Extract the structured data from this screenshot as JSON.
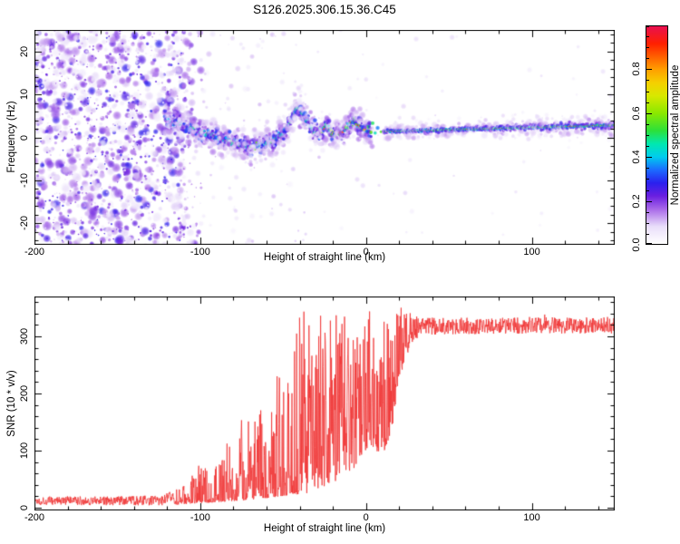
{
  "title": "S126.2025.306.15.36.C45",
  "chart_data": [
    {
      "type": "heatmap",
      "name": "doppler-spectrogram",
      "xlabel": "Height of straight line (km)",
      "ylabel": "Frequency (Hz)",
      "xlim": [
        -200,
        150
      ],
      "ylim": [
        -25,
        25
      ],
      "xticks": [
        -200,
        -100,
        0,
        100
      ],
      "xtick_minor_step": 20,
      "yticks": [
        -20,
        -10,
        0,
        10,
        20
      ],
      "ytick_minor_step": 2,
      "grid": false,
      "seed": 42,
      "colorbar": {
        "label": "Normalized spectral amplitude",
        "lim": [
          0,
          1
        ],
        "ticks": [
          0.0,
          0.2,
          0.4,
          0.6,
          0.8
        ],
        "tick_labels": [
          "0.0",
          "0.2",
          "0.4",
          "0.6",
          "0.8"
        ],
        "minor_step": 0.05,
        "stops": [
          [
            0.0,
            "#ffffff"
          ],
          [
            0.08,
            "#e9defa"
          ],
          [
            0.16,
            "#a868e8"
          ],
          [
            0.22,
            "#6a1fe0"
          ],
          [
            0.28,
            "#2a20ee"
          ],
          [
            0.34,
            "#1b6bff"
          ],
          [
            0.4,
            "#00ccee"
          ],
          [
            0.46,
            "#00e8b0"
          ],
          [
            0.52,
            "#2ce03a"
          ],
          [
            0.6,
            "#8ae800"
          ],
          [
            0.68,
            "#d8e800"
          ],
          [
            0.74,
            "#f5d000"
          ],
          [
            0.8,
            "#ffa000"
          ],
          [
            0.86,
            "#ff6000"
          ],
          [
            0.92,
            "#ff2000"
          ],
          [
            1.0,
            "#e81050"
          ]
        ]
      },
      "regions": {
        "noise_x": [
          -200,
          -110
        ],
        "noise_fade_x": [
          -110,
          -99
        ],
        "band_x": [
          -121,
          3
        ],
        "band_path": [
          [
            -121,
            4.2
          ],
          [
            -112,
            3.2
          ],
          [
            -103,
            1.6
          ],
          [
            -93,
            0.3
          ],
          [
            -80,
            -1.3
          ],
          [
            -68,
            -2.2
          ],
          [
            -58,
            -1.0
          ],
          [
            -50,
            0.8
          ],
          [
            -45,
            4.2
          ],
          [
            -42,
            6.8
          ],
          [
            -38,
            5.2
          ],
          [
            -33,
            1.8
          ],
          [
            -28,
            1.0
          ],
          [
            -24,
            2.4
          ],
          [
            -19,
            0.8
          ],
          [
            -14,
            1.4
          ],
          [
            -10,
            3.2
          ],
          [
            -7,
            3.8
          ],
          [
            -4,
            2.2
          ],
          [
            0,
            1.5
          ],
          [
            3,
            1.4
          ]
        ],
        "hot_band_from_km": -27,
        "cluster_blobs": [
          [
            4,
            3.3,
            0.5,
            2.6
          ],
          [
            5.5,
            1.0,
            0.45,
            2.3
          ],
          [
            7,
            2.2,
            0.35,
            2.8
          ],
          [
            9,
            1.3,
            0.55,
            2.0
          ],
          [
            3,
            0.2,
            0.25,
            2.2
          ]
        ],
        "line_x": [
          10.5,
          150
        ],
        "line_freq": [
          1.35,
          2.85
        ],
        "line_peak_amplitude": 1.0
      }
    },
    {
      "type": "line",
      "name": "snr-profile",
      "xlabel": "Height of straight line (km)",
      "ylabel": "SNR (10 * v/v)",
      "xlim": [
        -200,
        150
      ],
      "ylim": [
        -5,
        370
      ],
      "xticks": [
        -200,
        -100,
        0,
        100
      ],
      "xtick_minor_step": 20,
      "yticks": [
        0,
        100,
        200,
        300
      ],
      "ytick_minor_step": 20,
      "grid": false,
      "color": "#f03434",
      "seed": 1337,
      "envelope_points_km_lo_hi": [
        [
          -200,
          4,
          20
        ],
        [
          -150,
          4,
          20
        ],
        [
          -122,
          4,
          22
        ],
        [
          -110,
          6,
          42
        ],
        [
          -100,
          8,
          80
        ],
        [
          -88,
          10,
          95
        ],
        [
          -78,
          12,
          150
        ],
        [
          -66,
          15,
          165
        ],
        [
          -56,
          18,
          215
        ],
        [
          -46,
          22,
          275
        ],
        [
          -36,
          25,
          345
        ],
        [
          -28,
          35,
          320
        ],
        [
          -20,
          40,
          338
        ],
        [
          -13,
          55,
          345
        ],
        [
          -7,
          70,
          355
        ],
        [
          -2,
          90,
          360
        ],
        [
          3,
          110,
          342
        ],
        [
          8,
          95,
          300
        ],
        [
          13,
          100,
          368
        ],
        [
          17,
          160,
          360
        ],
        [
          21,
          230,
          352
        ],
        [
          27,
          288,
          342
        ],
        [
          34,
          303,
          333
        ],
        [
          60,
          304,
          333
        ],
        [
          100,
          305,
          334
        ],
        [
          150,
          304,
          334
        ]
      ]
    }
  ]
}
